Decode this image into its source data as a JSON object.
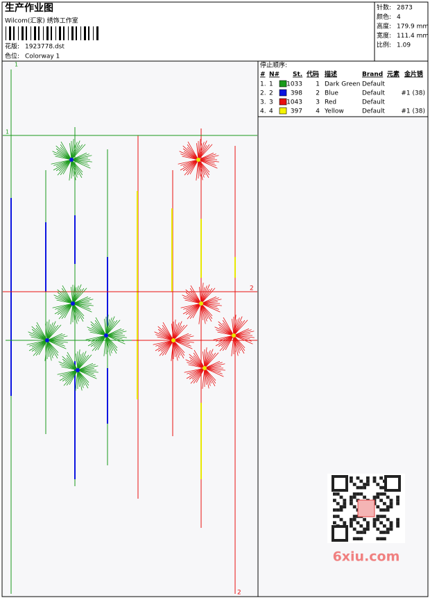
{
  "header": {
    "title": "生产作业图",
    "studio": "Wilcom(汇家) 绣饰工作室",
    "design_label": "花版:",
    "design": "1923778.dst",
    "colorway_label": "色位:",
    "colorway": "Colorway 1"
  },
  "stats": [
    {
      "label": "针数:",
      "value": "2873"
    },
    {
      "label": "颜色:",
      "value": "4"
    },
    {
      "label": "高度:",
      "value": "179.9 mm"
    },
    {
      "label": "宽度:",
      "value": "111.4 mm"
    },
    {
      "label": "比例:",
      "value": "1.09"
    }
  ],
  "stop_sequence": {
    "title": "停止顺序:",
    "columns": {
      "no": "#",
      "n": "N#",
      "stitches": "St.",
      "code": "代码",
      "desc": "描述",
      "brand": "Brand",
      "element": "元素",
      "sequin": "金片锈"
    },
    "rows": [
      {
        "no": "1.",
        "n": "1",
        "swatch": "#1a9a1a",
        "stitches": "1033",
        "code": "1",
        "desc": "Dark Green",
        "brand": "Default"
      },
      {
        "no": "2.",
        "n": "2",
        "swatch": "#0a14e0",
        "stitches": "398",
        "code": "2",
        "desc": "Blue",
        "brand": "Default",
        "sequin": "#1 (38)"
      },
      {
        "no": "3.",
        "n": "3",
        "swatch": "#e81010",
        "stitches": "1043",
        "code": "3",
        "desc": "Red",
        "brand": "Default"
      },
      {
        "no": "4.",
        "n": "4",
        "swatch": "#f4f400",
        "stitches": "397",
        "code": "4",
        "desc": "Yellow",
        "brand": "Default",
        "sequin": "#1 (38)"
      }
    ]
  },
  "guides": {
    "top_left": "1",
    "green_line": "1",
    "red_line": "2",
    "bottom": "2"
  },
  "watermark": "6xiu.com"
}
